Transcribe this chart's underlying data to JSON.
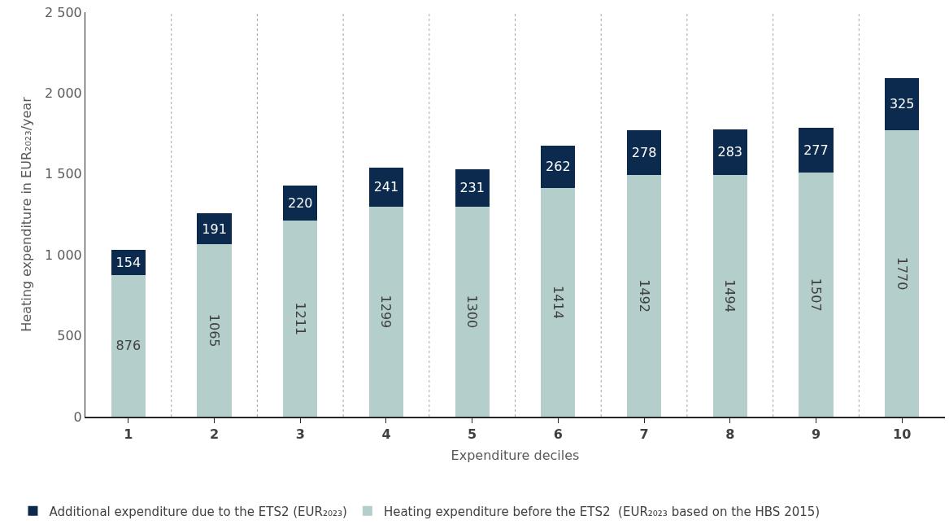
{
  "chart_data": {
    "type": "bar",
    "stacked": true,
    "xlabel": "Expenditure deciles",
    "ylabel": "Heating expenditure in EUR₂₀₂₃/year",
    "categories": [
      "1",
      "2",
      "3",
      "4",
      "5",
      "6",
      "7",
      "8",
      "9",
      "10"
    ],
    "series": [
      {
        "name": "Heating expenditure before the ETS2  (EUR₂₀₂₃ based on the HBS 2015)",
        "color": "#b3cecb",
        "values": [
          876,
          1065,
          1211,
          1299,
          1300,
          1414,
          1492,
          1494,
          1507,
          1770
        ]
      },
      {
        "name": "Additional expenditure due to the ETS2 (EUR₂₀₂₃)",
        "color": "#0b2a4e",
        "values": [
          154,
          191,
          220,
          241,
          231,
          262,
          278,
          283,
          277,
          325
        ]
      }
    ],
    "ylim": [
      0,
      2500
    ],
    "yticks": [
      0,
      500,
      {
        "value": 1000,
        "label": "1 000"
      },
      {
        "value": 1500,
        "label": "1 500"
      },
      {
        "value": 2000,
        "label": "2 000"
      },
      {
        "value": 2500,
        "label": "2 500"
      }
    ],
    "data_labels": true,
    "grid": "x",
    "legend": "bottom"
  }
}
